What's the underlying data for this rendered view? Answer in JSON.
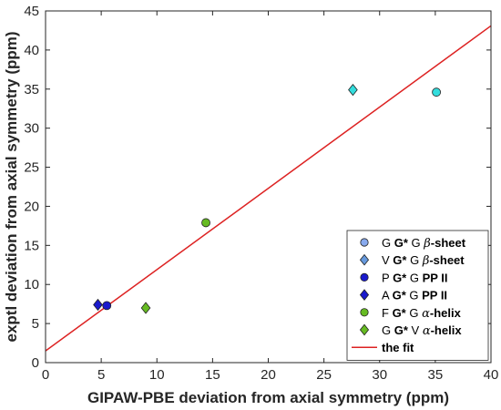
{
  "chart_data": {
    "type": "scatter",
    "xlabel": "GIPAW-PBE deviation from axial symmetry (ppm)",
    "ylabel": "exptl deviation from axial symmetry (ppm)",
    "xlim": [
      0,
      40
    ],
    "ylim": [
      0,
      45
    ],
    "x_ticks": [
      "0",
      "5",
      "10",
      "15",
      "20",
      "25",
      "30",
      "35",
      "40"
    ],
    "y_ticks": [
      "0",
      "5",
      "10",
      "15",
      "20",
      "25",
      "30",
      "35",
      "40",
      "45"
    ],
    "grid": false,
    "legend_position": "bottom-right",
    "series": [
      {
        "name": "G G* G β-sheet",
        "legend_parts": [
          [
            "G ",
            ""
          ],
          [
            "G*",
            "b"
          ],
          [
            " G ",
            ""
          ],
          [
            "β",
            "i"
          ],
          [
            "-sheet",
            "b"
          ]
        ],
        "marker": "circle",
        "color": "#33dddd",
        "points": [
          [
            35.1,
            34.6
          ]
        ]
      },
      {
        "name": "V G* G β-sheet",
        "legend_parts": [
          [
            "V ",
            ""
          ],
          [
            "G*",
            "b"
          ],
          [
            " G ",
            ""
          ],
          [
            "β",
            "i"
          ],
          [
            "-sheet",
            "b"
          ]
        ],
        "marker": "diamond",
        "color": "#33dddd",
        "points": [
          [
            27.6,
            34.9
          ]
        ]
      },
      {
        "name": "P G* G PP II",
        "legend_parts": [
          [
            "P ",
            ""
          ],
          [
            "G*",
            "b"
          ],
          [
            " G ",
            ""
          ],
          [
            "PP II",
            "b"
          ]
        ],
        "marker": "circle",
        "color": "#1a1acc",
        "points": [
          [
            5.5,
            7.3
          ]
        ]
      },
      {
        "name": "A G* G PP II",
        "legend_parts": [
          [
            "A ",
            ""
          ],
          [
            "G*",
            "b"
          ],
          [
            " G ",
            ""
          ],
          [
            "PP II",
            "b"
          ]
        ],
        "marker": "diamond",
        "color": "#1a1acc",
        "points": [
          [
            4.7,
            7.4
          ]
        ]
      },
      {
        "name": "F G* G α-helix",
        "legend_parts": [
          [
            "F ",
            ""
          ],
          [
            "G*",
            "b"
          ],
          [
            " G ",
            ""
          ],
          [
            "α",
            "i"
          ],
          [
            "-helix",
            "b"
          ]
        ],
        "marker": "circle",
        "color": "#66bb22",
        "points": [
          [
            14.4,
            17.9
          ]
        ]
      },
      {
        "name": "G G* V α-helix",
        "legend_parts": [
          [
            "G ",
            ""
          ],
          [
            "G*",
            "b"
          ],
          [
            " V ",
            ""
          ],
          [
            "α",
            "i"
          ],
          [
            "-helix",
            "b"
          ]
        ],
        "marker": "diamond",
        "color": "#66bb22",
        "points": [
          [
            9.0,
            7.0
          ]
        ]
      }
    ],
    "fit": {
      "name": "the fit",
      "color": "#dd2222",
      "x": [
        0,
        40
      ],
      "y": [
        1.5,
        43.1
      ]
    },
    "legend_swatch_colors": {
      "circle_cyan": "#88aaee",
      "diamond_cyan": "#6699dd"
    }
  }
}
